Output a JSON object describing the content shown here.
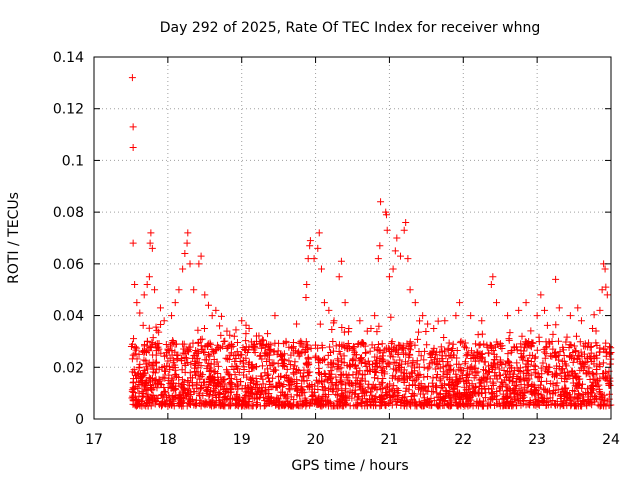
{
  "chart_data": {
    "type": "scatter",
    "title": "Day 292 of 2025, Rate Of TEC Index for receiver whng",
    "xlabel": "GPS time / hours",
    "ylabel": "ROTI / TECUs",
    "xlim": [
      17,
      24
    ],
    "ylim": [
      0,
      0.14
    ],
    "x_ticks": [
      "17",
      "18",
      "19",
      "20",
      "21",
      "22",
      "23",
      "24"
    ],
    "y_ticks": [
      "0",
      "0.02",
      "0.04",
      "0.06",
      "0.08",
      "0.1",
      "0.12",
      "0.14"
    ],
    "grid": true,
    "marker": "plus",
    "colors": {
      "points": "#ff0000",
      "grid": "#a0a0a0",
      "axis": "#000000"
    },
    "time_range": [
      17.5,
      24.0
    ],
    "typical_band": [
      0.005,
      0.03
    ],
    "points": [
      [
        17.52,
        0.132
      ],
      [
        17.53,
        0.113
      ],
      [
        17.53,
        0.105
      ],
      [
        17.53,
        0.068
      ],
      [
        17.55,
        0.052
      ],
      [
        17.58,
        0.045
      ],
      [
        17.62,
        0.041
      ],
      [
        17.68,
        0.048
      ],
      [
        17.72,
        0.052
      ],
      [
        17.75,
        0.055
      ],
      [
        17.76,
        0.068
      ],
      [
        17.77,
        0.072
      ],
      [
        17.79,
        0.066
      ],
      [
        17.82,
        0.05
      ],
      [
        17.9,
        0.043
      ],
      [
        17.95,
        0.038
      ],
      [
        18.05,
        0.04
      ],
      [
        18.1,
        0.045
      ],
      [
        18.15,
        0.05
      ],
      [
        18.2,
        0.058
      ],
      [
        18.23,
        0.064
      ],
      [
        18.26,
        0.068
      ],
      [
        18.27,
        0.072
      ],
      [
        18.3,
        0.06
      ],
      [
        18.35,
        0.05
      ],
      [
        18.42,
        0.06
      ],
      [
        18.45,
        0.063
      ],
      [
        18.5,
        0.048
      ],
      [
        18.55,
        0.044
      ],
      [
        18.6,
        0.04
      ],
      [
        18.65,
        0.042
      ],
      [
        18.7,
        0.036
      ],
      [
        18.8,
        0.034
      ],
      [
        18.9,
        0.032
      ],
      [
        19.0,
        0.038
      ],
      [
        19.1,
        0.035
      ],
      [
        19.2,
        0.03
      ],
      [
        19.35,
        0.033
      ],
      [
        19.45,
        0.04
      ],
      [
        19.6,
        0.03
      ],
      [
        19.7,
        0.028
      ],
      [
        19.8,
        0.03
      ],
      [
        19.87,
        0.047
      ],
      [
        19.88,
        0.052
      ],
      [
        19.9,
        0.062
      ],
      [
        19.92,
        0.067
      ],
      [
        19.93,
        0.069
      ],
      [
        19.98,
        0.062
      ],
      [
        20.03,
        0.066
      ],
      [
        20.05,
        0.072
      ],
      [
        20.08,
        0.058
      ],
      [
        20.12,
        0.045
      ],
      [
        20.18,
        0.042
      ],
      [
        20.25,
        0.038
      ],
      [
        20.32,
        0.055
      ],
      [
        20.35,
        0.061
      ],
      [
        20.4,
        0.045
      ],
      [
        20.45,
        0.035
      ],
      [
        20.6,
        0.038
      ],
      [
        20.7,
        0.034
      ],
      [
        20.75,
        0.035
      ],
      [
        20.8,
        0.04
      ],
      [
        20.85,
        0.062
      ],
      [
        20.87,
        0.067
      ],
      [
        20.88,
        0.084
      ],
      [
        20.95,
        0.08
      ],
      [
        20.96,
        0.079
      ],
      [
        20.97,
        0.073
      ],
      [
        21.0,
        0.055
      ],
      [
        21.05,
        0.058
      ],
      [
        21.08,
        0.065
      ],
      [
        21.1,
        0.07
      ],
      [
        21.15,
        0.063
      ],
      [
        21.2,
        0.073
      ],
      [
        21.22,
        0.076
      ],
      [
        21.25,
        0.062
      ],
      [
        21.28,
        0.05
      ],
      [
        21.35,
        0.045
      ],
      [
        21.45,
        0.04
      ],
      [
        21.6,
        0.035
      ],
      [
        21.75,
        0.038
      ],
      [
        21.9,
        0.04
      ],
      [
        21.95,
        0.045
      ],
      [
        22.1,
        0.04
      ],
      [
        22.25,
        0.038
      ],
      [
        22.38,
        0.052
      ],
      [
        22.4,
        0.055
      ],
      [
        22.45,
        0.045
      ],
      [
        22.6,
        0.04
      ],
      [
        22.75,
        0.042
      ],
      [
        22.85,
        0.045
      ],
      [
        23.0,
        0.04
      ],
      [
        23.05,
        0.048
      ],
      [
        23.1,
        0.042
      ],
      [
        23.25,
        0.054
      ],
      [
        23.3,
        0.043
      ],
      [
        23.45,
        0.04
      ],
      [
        23.55,
        0.043
      ],
      [
        23.6,
        0.038
      ],
      [
        23.75,
        0.035
      ],
      [
        23.85,
        0.042
      ],
      [
        23.88,
        0.05
      ],
      [
        23.9,
        0.06
      ],
      [
        23.92,
        0.058
      ],
      [
        23.93,
        0.051
      ],
      [
        23.95,
        0.048
      ],
      [
        23.98,
        0.028
      ]
    ]
  }
}
